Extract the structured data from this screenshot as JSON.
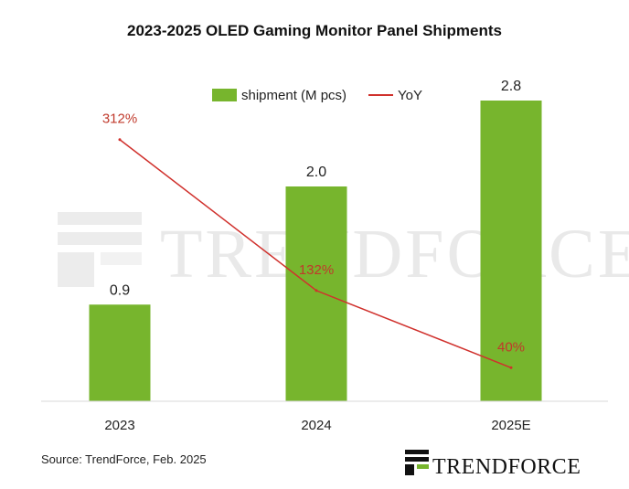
{
  "title": "2023-2025 OLED Gaming Monitor Panel Shipments",
  "source": "Source: TrendForce, Feb. 2025",
  "brand": "TRENDFORCE",
  "watermark": "TRENDFORCE",
  "colors": {
    "bar": "#77b52d",
    "yoy": "#d0312d",
    "axis": "#d9d9d9"
  },
  "chart_data": {
    "type": "bar",
    "categories": [
      "2023",
      "2024",
      "2025E"
    ],
    "series": [
      {
        "name": "shipment (M pcs)",
        "type": "bar",
        "values": [
          0.9,
          2.0,
          2.8
        ],
        "labels": [
          "0.9",
          "2.0",
          "2.8"
        ]
      },
      {
        "name": "YoY",
        "type": "line",
        "values": [
          312,
          132,
          40
        ],
        "labels": [
          "312%",
          "132%",
          "40%"
        ]
      }
    ],
    "legend": {
      "position": "top-center",
      "entries": [
        "shipment (M pcs)",
        "YoY"
      ]
    },
    "ylim": [
      0,
      3.2
    ],
    "ylim_secondary": [
      0,
      400
    ],
    "grid": false
  }
}
